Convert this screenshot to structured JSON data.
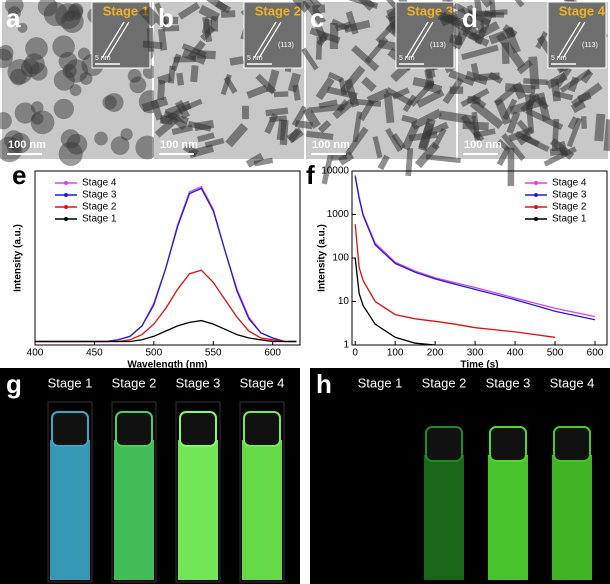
{
  "tem_panels": [
    {
      "letter": "a",
      "stage": "Stage 1",
      "inset_scale": "5 nm",
      "scale": "100 nm"
    },
    {
      "letter": "b",
      "stage": "Stage 2",
      "inset_scale": "5 nm",
      "plane": "(113)",
      "scale": "100 nm"
    },
    {
      "letter": "c",
      "stage": "Stage 3",
      "inset_scale": "5 nm",
      "plane": "(113)",
      "scale": "100 nm"
    },
    {
      "letter": "d",
      "stage": "Stage 4",
      "inset_scale": "5 nm",
      "plane": "(113)",
      "scale": "100 nm"
    }
  ],
  "chart_data": [
    {
      "type": "line",
      "letter": "e",
      "x_label": "Wavelength (nm)",
      "y_label": "Intensity (a.u.)",
      "x": [
        400,
        420,
        440,
        460,
        470,
        480,
        490,
        500,
        510,
        520,
        530,
        540,
        550,
        560,
        570,
        580,
        590,
        600,
        610,
        620
      ],
      "xlim": [
        400,
        623
      ],
      "xticks": [
        400,
        450,
        500,
        550,
        600
      ],
      "ylim": [
        0,
        1
      ],
      "legend": "upper left",
      "series": [
        {
          "name": "Stage 4",
          "color": "#e040e0",
          "values": [
            0.02,
            0.02,
            0.02,
            0.02,
            0.03,
            0.05,
            0.11,
            0.24,
            0.44,
            0.69,
            0.88,
            0.91,
            0.78,
            0.54,
            0.32,
            0.16,
            0.07,
            0.04,
            0.02,
            0.02
          ]
        },
        {
          "name": "Stage 3",
          "color": "#1f1fd0",
          "values": [
            0.02,
            0.02,
            0.02,
            0.02,
            0.03,
            0.05,
            0.11,
            0.23,
            0.44,
            0.68,
            0.87,
            0.9,
            0.77,
            0.54,
            0.31,
            0.15,
            0.07,
            0.04,
            0.02,
            0.02
          ]
        },
        {
          "name": "Stage 2",
          "color": "#e01010",
          "values": [
            0.02,
            0.02,
            0.02,
            0.02,
            0.02,
            0.03,
            0.06,
            0.12,
            0.21,
            0.32,
            0.41,
            0.43,
            0.36,
            0.26,
            0.16,
            0.08,
            0.04,
            0.03,
            0.02,
            0.02
          ]
        },
        {
          "name": "Stage 1",
          "color": "#000000",
          "values": [
            0.02,
            0.02,
            0.02,
            0.02,
            0.02,
            0.02,
            0.03,
            0.05,
            0.08,
            0.11,
            0.13,
            0.14,
            0.12,
            0.09,
            0.06,
            0.04,
            0.03,
            0.02,
            0.02,
            0.02
          ]
        }
      ]
    },
    {
      "type": "line",
      "letter": "f",
      "x_label": "Time (s)",
      "y_label": "Intensity (a.u.)",
      "log_y": true,
      "x": [
        0,
        10,
        20,
        50,
        100,
        150,
        200,
        250,
        300,
        400,
        500,
        600
      ],
      "xlim": [
        -8,
        630
      ],
      "xticks": [
        0,
        100,
        200,
        300,
        400,
        500,
        600
      ],
      "ylim": [
        1,
        10000
      ],
      "yticks": [
        1,
        10,
        100,
        1000,
        10000
      ],
      "legend": "upper right",
      "series": [
        {
          "name": "Stage 4",
          "color": "#e040e0",
          "values": [
            8000,
            2500,
            1000,
            220,
            80,
            50,
            35,
            27,
            21,
            12,
            7,
            4.5
          ]
        },
        {
          "name": "Stage 3",
          "color": "#1f1fd0",
          "values": [
            7500,
            2300,
            950,
            200,
            75,
            47,
            33,
            25,
            19,
            11,
            6,
            3.8
          ]
        },
        {
          "name": "Stage 2",
          "color": "#e01010",
          "values": [
            600,
            60,
            30,
            10,
            5,
            4,
            3.5,
            3,
            2.5,
            2,
            1.5,
            null
          ]
        },
        {
          "name": "Stage 1",
          "color": "#000000",
          "values": [
            100,
            15,
            8,
            3,
            1.5,
            1.1,
            1,
            null,
            null,
            null,
            null,
            null
          ]
        }
      ]
    }
  ],
  "photo_panels": [
    {
      "letter": "g",
      "labels": [
        "Stage 1",
        "Stage 2",
        "Stage 3",
        "Stage 4"
      ]
    },
    {
      "letter": "h",
      "labels": [
        "Stage 1",
        "Stage 2",
        "Stage 3",
        "Stage 4"
      ]
    }
  ]
}
